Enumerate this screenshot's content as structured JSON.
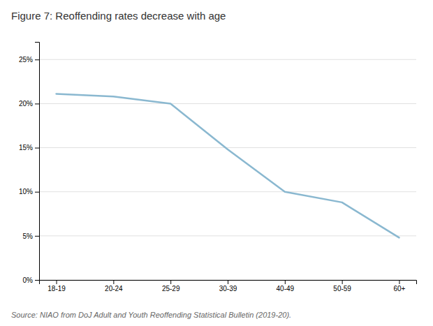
{
  "chart_data": {
    "type": "line",
    "title": "Figure 7: Reoffending rates decrease with age",
    "categories": [
      "18-19",
      "20-24",
      "25-29",
      "30-39",
      "40-49",
      "50-59",
      "60+"
    ],
    "values": [
      0.211,
      0.208,
      0.2,
      0.148,
      0.1,
      0.088,
      0.048
    ],
    "color": "#8ab8d0",
    "ylim": [
      0,
      0.27
    ],
    "yticks": [
      {
        "value": 0.0,
        "label": "0%"
      },
      {
        "value": 0.05,
        "label": "5%"
      },
      {
        "value": 0.1,
        "label": "10%"
      },
      {
        "value": 0.15,
        "label": "15%"
      },
      {
        "value": 0.2,
        "label": "20%"
      },
      {
        "value": 0.25,
        "label": "25%"
      }
    ],
    "grid": true,
    "annotations": [
      "Source: NIAO from DoJ Adult and Youth Reoffending Statistical Bulletin (2019-20)."
    ]
  }
}
